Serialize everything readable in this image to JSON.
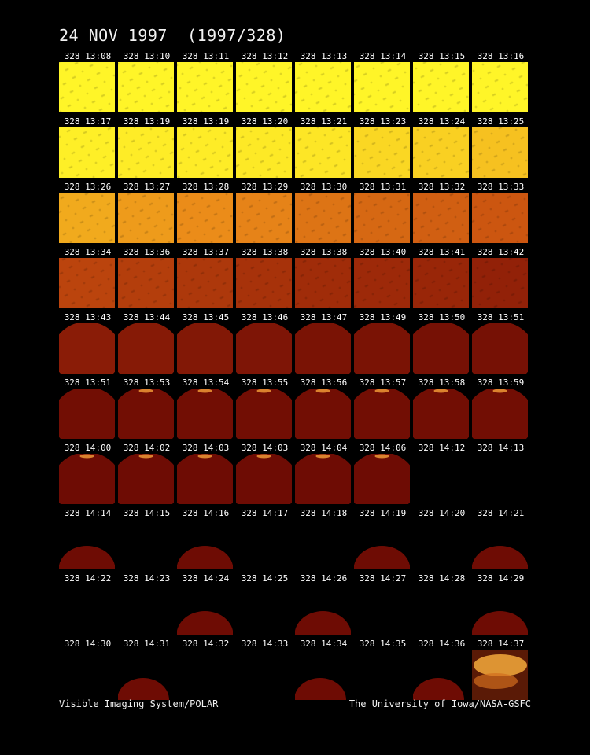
{
  "title": "24 NOV 1997  (1997/328)",
  "footer": {
    "left": "Visible Imaging System/POLAR",
    "right": "The University of Iowa/NASA-GSFC"
  },
  "rows": [
    [
      {
        "time": "328 13:08",
        "kind": "full",
        "brightness": 1.0
      },
      {
        "time": "328 13:10",
        "kind": "full",
        "brightness": 1.0
      },
      {
        "time": "328 13:11",
        "kind": "full",
        "brightness": 1.0
      },
      {
        "time": "328 13:12",
        "kind": "full",
        "brightness": 1.0
      },
      {
        "time": "328 13:13",
        "kind": "full",
        "brightness": 1.0
      },
      {
        "time": "328 13:14",
        "kind": "full",
        "brightness": 1.0
      },
      {
        "time": "328 13:15",
        "kind": "full",
        "brightness": 1.0
      },
      {
        "time": "328 13:16",
        "kind": "full",
        "brightness": 1.0
      }
    ],
    [
      {
        "time": "328 13:17",
        "kind": "full",
        "brightness": 0.98
      },
      {
        "time": "328 13:19",
        "kind": "full",
        "brightness": 0.97
      },
      {
        "time": "328 13:19",
        "kind": "full",
        "brightness": 0.97
      },
      {
        "time": "328 13:20",
        "kind": "full",
        "brightness": 0.96
      },
      {
        "time": "328 13:21",
        "kind": "full",
        "brightness": 0.95
      },
      {
        "time": "328 13:23",
        "kind": "full",
        "brightness": 0.9
      },
      {
        "time": "328 13:24",
        "kind": "full",
        "brightness": 0.88
      },
      {
        "time": "328 13:25",
        "kind": "full",
        "brightness": 0.84
      }
    ],
    [
      {
        "time": "328 13:26",
        "kind": "full",
        "brightness": 0.78
      },
      {
        "time": "328 13:27",
        "kind": "full",
        "brightness": 0.74
      },
      {
        "time": "328 13:28",
        "kind": "full",
        "brightness": 0.7
      },
      {
        "time": "328 13:29",
        "kind": "full",
        "brightness": 0.67
      },
      {
        "time": "328 13:30",
        "kind": "full",
        "brightness": 0.62
      },
      {
        "time": "328 13:31",
        "kind": "full",
        "brightness": 0.58
      },
      {
        "time": "328 13:32",
        "kind": "full",
        "brightness": 0.55
      },
      {
        "time": "328 13:33",
        "kind": "full",
        "brightness": 0.52
      }
    ],
    [
      {
        "time": "328 13:34",
        "kind": "full",
        "brightness": 0.46
      },
      {
        "time": "328 13:36",
        "kind": "full",
        "brightness": 0.44
      },
      {
        "time": "328 13:37",
        "kind": "full",
        "brightness": 0.42
      },
      {
        "time": "328 13:38",
        "kind": "full",
        "brightness": 0.4
      },
      {
        "time": "328 13:38",
        "kind": "full",
        "brightness": 0.38
      },
      {
        "time": "328 13:40",
        "kind": "full",
        "brightness": 0.37
      },
      {
        "time": "328 13:41",
        "kind": "full",
        "brightness": 0.36
      },
      {
        "time": "328 13:42",
        "kind": "full",
        "brightness": 0.34
      }
    ],
    [
      {
        "time": "328 13:43",
        "kind": "disk",
        "brightness": 0.32
      },
      {
        "time": "328 13:44",
        "kind": "disk",
        "brightness": 0.31
      },
      {
        "time": "328 13:45",
        "kind": "disk",
        "brightness": 0.3
      },
      {
        "time": "328 13:46",
        "kind": "disk",
        "brightness": 0.29
      },
      {
        "time": "328 13:47",
        "kind": "disk",
        "brightness": 0.28
      },
      {
        "time": "328 13:49",
        "kind": "disk",
        "brightness": 0.28
      },
      {
        "time": "328 13:50",
        "kind": "disk",
        "brightness": 0.27
      },
      {
        "time": "328 13:51",
        "kind": "disk",
        "brightness": 0.27
      }
    ],
    [
      {
        "time": "328 13:51",
        "kind": "disk",
        "brightness": 0.26
      },
      {
        "time": "328 13:53",
        "kind": "disk",
        "brightness": 0.26,
        "aurora": true
      },
      {
        "time": "328 13:54",
        "kind": "disk",
        "brightness": 0.26,
        "aurora": true
      },
      {
        "time": "328 13:55",
        "kind": "disk",
        "brightness": 0.26,
        "aurora": true
      },
      {
        "time": "328 13:56",
        "kind": "disk",
        "brightness": 0.26,
        "aurora": true
      },
      {
        "time": "328 13:57",
        "kind": "disk",
        "brightness": 0.26,
        "aurora": true
      },
      {
        "time": "328 13:58",
        "kind": "disk",
        "brightness": 0.26,
        "aurora": true
      },
      {
        "time": "328 13:59",
        "kind": "disk",
        "brightness": 0.26,
        "aurora": true
      }
    ],
    [
      {
        "time": "328 14:00",
        "kind": "disk",
        "brightness": 0.25,
        "aurora": true
      },
      {
        "time": "328 14:02",
        "kind": "disk",
        "brightness": 0.25,
        "aurora": true
      },
      {
        "time": "328 14:03",
        "kind": "disk",
        "brightness": 0.25,
        "aurora": true
      },
      {
        "time": "328 14:03",
        "kind": "disk",
        "brightness": 0.25,
        "aurora": true
      },
      {
        "time": "328 14:04",
        "kind": "disk",
        "brightness": 0.25,
        "aurora": true
      },
      {
        "time": "328 14:06",
        "kind": "disk",
        "brightness": 0.25,
        "aurora": true
      },
      {
        "time": "328 14:12",
        "kind": "empty"
      },
      {
        "time": "328 14:13",
        "kind": "empty"
      }
    ],
    [
      {
        "time": "328 14:14",
        "kind": "half",
        "brightness": 0.25
      },
      {
        "time": "328 14:15",
        "kind": "empty"
      },
      {
        "time": "328 14:16",
        "kind": "half",
        "brightness": 0.25
      },
      {
        "time": "328 14:17",
        "kind": "empty"
      },
      {
        "time": "328 14:18",
        "kind": "empty"
      },
      {
        "time": "328 14:19",
        "kind": "half",
        "brightness": 0.25
      },
      {
        "time": "328 14:20",
        "kind": "empty"
      },
      {
        "time": "328 14:21",
        "kind": "half",
        "brightness": 0.25
      }
    ],
    [
      {
        "time": "328 14:22",
        "kind": "empty"
      },
      {
        "time": "328 14:23",
        "kind": "empty"
      },
      {
        "time": "328 14:24",
        "kind": "half",
        "brightness": 0.25
      },
      {
        "time": "328 14:25",
        "kind": "empty"
      },
      {
        "time": "328 14:26",
        "kind": "half",
        "brightness": 0.25
      },
      {
        "time": "328 14:27",
        "kind": "empty"
      },
      {
        "time": "328 14:28",
        "kind": "empty"
      },
      {
        "time": "328 14:29",
        "kind": "half",
        "brightness": 0.25
      }
    ],
    [
      {
        "time": "328 14:30",
        "kind": "empty"
      },
      {
        "time": "328 14:31",
        "kind": "smallhalf",
        "brightness": 0.25
      },
      {
        "time": "328 14:32",
        "kind": "empty"
      },
      {
        "time": "328 14:33",
        "kind": "empty"
      },
      {
        "time": "328 14:34",
        "kind": "smallhalf",
        "brightness": 0.25
      },
      {
        "time": "328 14:35",
        "kind": "empty"
      },
      {
        "time": "328 14:36",
        "kind": "smallhalf",
        "brightness": 0.25
      },
      {
        "time": "328 14:37",
        "kind": "aurora",
        "brightness": 0.7
      }
    ]
  ]
}
